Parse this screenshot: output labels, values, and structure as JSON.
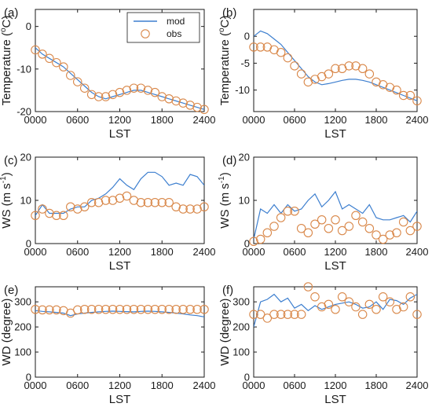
{
  "figure": {
    "legend": {
      "mod_label": "mod",
      "obs_label": "obs",
      "placement": "top-right of panel (a)"
    },
    "colors": {
      "mod": "#3d7fcf",
      "obs": "#d9884a",
      "axis": "#1a1a1a"
    }
  },
  "chart_data": [
    {
      "id": "a",
      "panel_label": "(a)",
      "type": "line",
      "xlabel": "LST",
      "ylabel": "Temperature (°C)",
      "ylabel_unit": "o",
      "xlim": [
        0,
        24
      ],
      "ylim": [
        -20,
        4
      ],
      "xticks": [
        0,
        6,
        12,
        18,
        24
      ],
      "xtick_labels": [
        "0000",
        "0600",
        "1200",
        "1800",
        "2400"
      ],
      "yticks": [
        -20,
        -10,
        0
      ],
      "ytick_labels": [
        "-20",
        "-10",
        "0"
      ],
      "series": [
        {
          "name": "mod",
          "style": "line",
          "x": [
            0,
            1,
            2,
            3,
            4,
            5,
            6,
            7,
            8,
            9,
            10,
            11,
            12,
            13,
            14,
            15,
            16,
            17,
            18,
            19,
            20,
            21,
            22,
            23,
            24
          ],
          "values": [
            -5,
            -6.5,
            -7.5,
            -8.5,
            -9.5,
            -11,
            -12.5,
            -14,
            -15.5,
            -16.5,
            -17,
            -16.5,
            -16,
            -15.5,
            -15,
            -15,
            -15.5,
            -16,
            -16.5,
            -17,
            -17.5,
            -18,
            -18.5,
            -19,
            -19.5
          ]
        },
        {
          "name": "obs",
          "style": "circle",
          "x": [
            0,
            1,
            2,
            3,
            4,
            5,
            6,
            7,
            8,
            9,
            10,
            11,
            12,
            13,
            14,
            15,
            16,
            17,
            18,
            19,
            20,
            21,
            22,
            23,
            24
          ],
          "values": [
            -5.5,
            -6.5,
            -7.5,
            -8.5,
            -9.5,
            -11.5,
            -13,
            -14.5,
            -16,
            -16.5,
            -16.5,
            -16,
            -15.5,
            -15,
            -14.5,
            -14.5,
            -15,
            -15.5,
            -16.5,
            -17,
            -17.5,
            -18,
            -18.5,
            -19,
            -19.5
          ]
        }
      ]
    },
    {
      "id": "b",
      "panel_label": "(b)",
      "type": "line",
      "xlabel": "LST",
      "ylabel": "Temperature (°C)",
      "ylabel_unit": "o",
      "xlim": [
        0,
        24
      ],
      "ylim": [
        -14,
        5
      ],
      "xticks": [
        0,
        6,
        12,
        18,
        24
      ],
      "xtick_labels": [
        "0000",
        "0600",
        "1200",
        "1800",
        "2400"
      ],
      "yticks": [
        -10,
        -5,
        0
      ],
      "ytick_labels": [
        "-10",
        "-5",
        "0"
      ],
      "series": [
        {
          "name": "mod",
          "style": "line",
          "x": [
            0,
            1,
            2,
            3,
            4,
            5,
            6,
            7,
            8,
            9,
            10,
            11,
            12,
            13,
            14,
            15,
            16,
            17,
            18,
            19,
            20,
            21,
            22,
            23,
            24
          ],
          "values": [
            0,
            1,
            0.5,
            -0.5,
            -1.5,
            -3,
            -4.5,
            -6,
            -7.5,
            -8.5,
            -9,
            -8.8,
            -8.5,
            -8.2,
            -8,
            -8,
            -8.2,
            -8.5,
            -9,
            -9.5,
            -10,
            -10.5,
            -11,
            -11.5,
            -12
          ]
        },
        {
          "name": "obs",
          "style": "circle",
          "x": [
            0,
            1,
            2,
            3,
            4,
            5,
            6,
            7,
            8,
            9,
            10,
            11,
            12,
            13,
            14,
            15,
            16,
            17,
            18,
            19,
            20,
            21,
            22,
            23,
            24
          ],
          "values": [
            -2,
            -2,
            -2,
            -2.5,
            -3,
            -4,
            -5.5,
            -7,
            -8.5,
            -8,
            -7.5,
            -7,
            -6,
            -6,
            -5.5,
            -5.5,
            -6,
            -7,
            -8.5,
            -9,
            -9.5,
            -10,
            -11,
            -11,
            -12
          ]
        }
      ]
    },
    {
      "id": "c",
      "panel_label": "(c)",
      "type": "line",
      "xlabel": "LST",
      "ylabel": "WS (m s⁻¹)",
      "ylabel_unit": "-1",
      "xlim": [
        0,
        24
      ],
      "ylim": [
        0,
        20
      ],
      "xticks": [
        0,
        6,
        12,
        18,
        24
      ],
      "xtick_labels": [
        "0000",
        "0600",
        "1200",
        "1800",
        "2400"
      ],
      "yticks": [
        0,
        10,
        20
      ],
      "ytick_labels": [
        "0",
        "10",
        "20"
      ],
      "series": [
        {
          "name": "mod",
          "style": "line",
          "x": [
            0,
            1,
            2,
            3,
            4,
            5,
            6,
            7,
            8,
            9,
            10,
            11,
            12,
            13,
            14,
            15,
            16,
            17,
            18,
            19,
            20,
            21,
            22,
            23,
            24
          ],
          "values": [
            6.5,
            9,
            7,
            7,
            7,
            8,
            8.5,
            8.5,
            10,
            10.5,
            11.5,
            13,
            15,
            13.5,
            12.5,
            15,
            16.5,
            16.5,
            15.5,
            13.5,
            14,
            13.5,
            16,
            15.5,
            13.5
          ]
        },
        {
          "name": "obs",
          "style": "circle",
          "x": [
            0,
            1,
            2,
            3,
            4,
            5,
            6,
            7,
            8,
            9,
            10,
            11,
            12,
            13,
            14,
            15,
            16,
            17,
            18,
            19,
            20,
            21,
            22,
            23,
            24
          ],
          "values": [
            6.5,
            8,
            7,
            6.5,
            6.5,
            8.5,
            8,
            8.5,
            9.5,
            9.5,
            10,
            10,
            10.5,
            11,
            10,
            9.5,
            9.5,
            9.5,
            9.5,
            9.5,
            8.5,
            8,
            8,
            8,
            8.5
          ]
        }
      ]
    },
    {
      "id": "d",
      "panel_label": "(d)",
      "type": "line",
      "xlabel": "LST",
      "ylabel": "WS (m s⁻¹)",
      "ylabel_unit": "-1",
      "xlim": [
        0,
        24
      ],
      "ylim": [
        0,
        20
      ],
      "xticks": [
        0,
        6,
        12,
        18,
        24
      ],
      "xtick_labels": [
        "0000",
        "0600",
        "1200",
        "1800",
        "2400"
      ],
      "yticks": [
        0,
        10,
        20
      ],
      "ytick_labels": [
        "0",
        "10",
        "20"
      ],
      "series": [
        {
          "name": "mod",
          "style": "line",
          "x": [
            0,
            1,
            2,
            3,
            4,
            5,
            6,
            7,
            8,
            9,
            10,
            11,
            12,
            13,
            14,
            15,
            16,
            17,
            18,
            19,
            20,
            21,
            22,
            23,
            24
          ],
          "values": [
            1,
            8,
            7,
            9,
            7,
            9,
            7.5,
            8,
            10,
            11.5,
            8.5,
            10,
            12,
            8,
            9,
            8,
            7,
            9,
            6,
            5.5,
            5.5,
            6,
            6.5,
            5,
            7.5
          ]
        },
        {
          "name": "obs",
          "style": "circle",
          "x": [
            0,
            1,
            2,
            3,
            4,
            5,
            6,
            7,
            8,
            9,
            10,
            11,
            12,
            13,
            14,
            15,
            16,
            17,
            18,
            19,
            20,
            21,
            22,
            23,
            24
          ],
          "values": [
            0.5,
            1,
            2.5,
            4,
            6,
            7.5,
            7.5,
            3.5,
            2.5,
            4.5,
            5.5,
            3.5,
            5.5,
            3,
            4,
            6.5,
            5,
            3.5,
            2,
            1,
            2,
            2.5,
            5,
            3,
            4
          ]
        }
      ]
    },
    {
      "id": "e",
      "panel_label": "(e)",
      "type": "line",
      "xlabel": "LST",
      "ylabel": "WD (degree)",
      "ylabel_unit": "",
      "xlim": [
        0,
        24
      ],
      "ylim": [
        0,
        360
      ],
      "xticks": [
        0,
        6,
        12,
        18,
        24
      ],
      "xtick_labels": [
        "0000",
        "0600",
        "1200",
        "1800",
        "2400"
      ],
      "yticks": [
        0,
        100,
        200,
        300
      ],
      "ytick_labels": [
        "0",
        "100",
        "200",
        "300"
      ],
      "series": [
        {
          "name": "mod",
          "style": "line",
          "x": [
            0,
            1,
            2,
            3,
            4,
            5,
            6,
            7,
            8,
            9,
            10,
            11,
            12,
            13,
            14,
            15,
            16,
            17,
            18,
            19,
            20,
            21,
            22,
            23,
            24
          ],
          "values": [
            265,
            262,
            260,
            258,
            255,
            245,
            252,
            255,
            258,
            260,
            262,
            263,
            262,
            261,
            260,
            262,
            263,
            262,
            260,
            258,
            255,
            252,
            248,
            245,
            240
          ]
        },
        {
          "name": "obs",
          "style": "circle",
          "x": [
            0,
            1,
            2,
            3,
            4,
            5,
            6,
            7,
            8,
            9,
            10,
            11,
            12,
            13,
            14,
            15,
            16,
            17,
            18,
            19,
            20,
            21,
            22,
            23,
            24
          ],
          "values": [
            270,
            268,
            268,
            268,
            265,
            255,
            268,
            270,
            270,
            270,
            270,
            270,
            270,
            270,
            270,
            270,
            270,
            270,
            270,
            270,
            270,
            270,
            270,
            270,
            270
          ]
        }
      ]
    },
    {
      "id": "f",
      "panel_label": "(f)",
      "type": "line",
      "xlabel": "LST",
      "ylabel": "WD (degree)",
      "ylabel_unit": "",
      "xlim": [
        0,
        24
      ],
      "ylim": [
        0,
        360
      ],
      "xticks": [
        0,
        6,
        12,
        18,
        24
      ],
      "xtick_labels": [
        "0000",
        "0600",
        "1200",
        "1800",
        "2400"
      ],
      "yticks": [
        0,
        100,
        200,
        300
      ],
      "ytick_labels": [
        "0",
        "100",
        "200",
        "300"
      ],
      "series": [
        {
          "name": "mod",
          "style": "line",
          "x": [
            0,
            1,
            2,
            3,
            4,
            5,
            6,
            7,
            8,
            9,
            10,
            11,
            12,
            13,
            14,
            15,
            16,
            17,
            18,
            19,
            20,
            21,
            22,
            23,
            24
          ],
          "values": [
            200,
            300,
            310,
            330,
            300,
            315,
            275,
            290,
            265,
            285,
            270,
            280,
            290,
            295,
            300,
            290,
            275,
            280,
            300,
            270,
            310,
            305,
            290,
            315,
            330
          ]
        },
        {
          "name": "obs",
          "style": "circle",
          "x": [
            0,
            1,
            2,
            3,
            4,
            5,
            6,
            7,
            8,
            9,
            10,
            11,
            12,
            13,
            14,
            15,
            16,
            17,
            18,
            19,
            20,
            21,
            22,
            23,
            24
          ],
          "values": [
            250,
            250,
            235,
            250,
            250,
            250,
            250,
            250,
            360,
            320,
            280,
            290,
            270,
            320,
            300,
            280,
            250,
            290,
            270,
            320,
            300,
            270,
            280,
            320,
            250
          ]
        }
      ]
    }
  ]
}
